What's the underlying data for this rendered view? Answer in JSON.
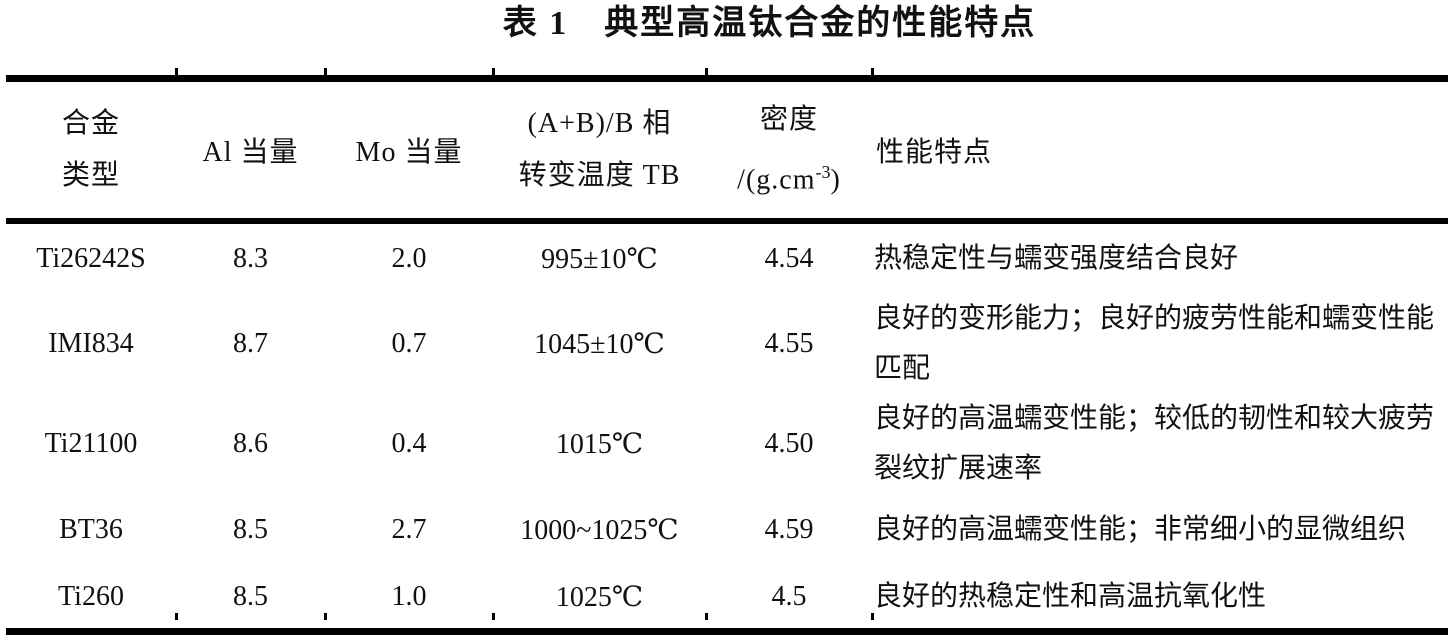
{
  "title": "表 1　典型高温钛合金的性能特点",
  "table": {
    "header": {
      "col1_line1": "合金",
      "col1_line2": "类型",
      "col2": "Al 当量",
      "col3": "Mo 当量",
      "col4_line1": "(A+B)/B 相",
      "col4_line2": "转变温度 TB",
      "col5_line1": "密度",
      "col5_line2_pre": "/(g.cm",
      "col5_sup": "-3",
      "col5_line2_post": ")",
      "col6": "性能特点"
    },
    "rows": [
      {
        "alloy": "Ti26242S",
        "al": "8.3",
        "mo": "2.0",
        "temp": "995±10℃",
        "density": "4.54",
        "features": "热稳定性与蠕变强度结合良好"
      },
      {
        "alloy": "IMI834",
        "al": "8.7",
        "mo": "0.7",
        "temp": "1045±10℃",
        "density": "4.55",
        "features": "良好的变形能力；良好的疲劳性能和蠕变性能匹配"
      },
      {
        "alloy": "Ti21100",
        "al": "8.6",
        "mo": "0.4",
        "temp": "1015℃",
        "density": "4.50",
        "features": "良好的高温蠕变性能；较低的韧性和较大疲劳裂纹扩展速率"
      },
      {
        "alloy": "BT36",
        "al": "8.5",
        "mo": "2.7",
        "temp": "1000~1025℃",
        "density": "4.59",
        "features": "良好的高温蠕变性能；非常细小的显微组织"
      },
      {
        "alloy": "Ti260",
        "al": "8.5",
        "mo": "1.0",
        "temp": "1025℃",
        "density": "4.5",
        "features": "良好的热稳定性和高温抗氧化性"
      }
    ]
  },
  "colors": {
    "rule": "#000000",
    "text": "#111111",
    "background": "#ffffff"
  }
}
